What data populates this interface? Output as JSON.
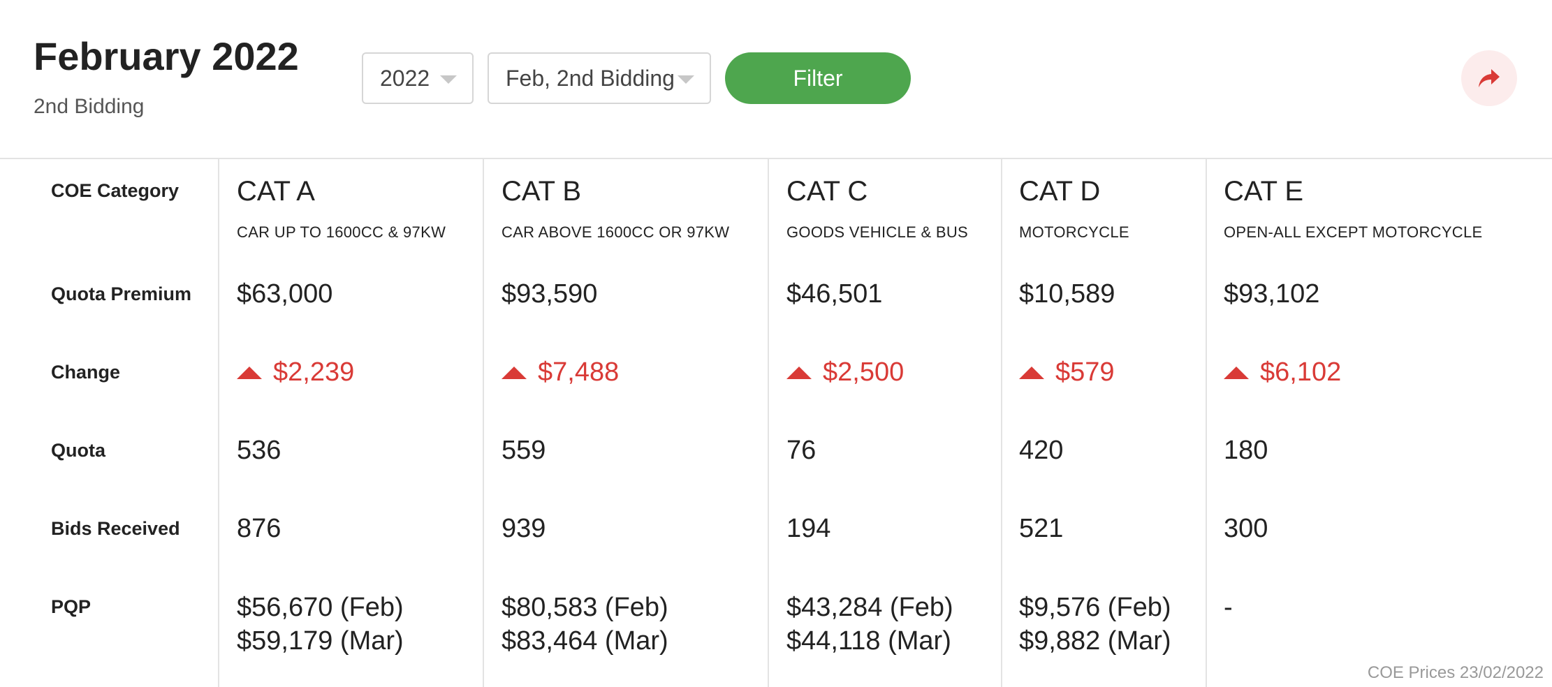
{
  "header": {
    "title": "February 2022",
    "subtitle": "2nd Bidding",
    "year_select": "2022",
    "bidding_select": "Feb, 2nd Bidding",
    "filter_label": "Filter"
  },
  "row_labels": {
    "category": "COE Category",
    "quota_premium": "Quota Premium",
    "change": "Change",
    "quota": "Quota",
    "bids": "Bids Received",
    "pqp": "PQP"
  },
  "categories": [
    {
      "name": "CAT A",
      "desc": "CAR UP TO 1600CC & 97KW",
      "premium": "$63,000",
      "change": "$2,239",
      "quota": "536",
      "bids": "876",
      "pqp1": "$56,670 (Feb)",
      "pqp2": "$59,179 (Mar)"
    },
    {
      "name": "CAT B",
      "desc": "CAR ABOVE 1600CC OR 97KW",
      "premium": "$93,590",
      "change": "$7,488",
      "quota": "559",
      "bids": "939",
      "pqp1": "$80,583 (Feb)",
      "pqp2": "$83,464 (Mar)"
    },
    {
      "name": "CAT C",
      "desc": "GOODS VEHICLE & BUS",
      "premium": "$46,501",
      "change": "$2,500",
      "quota": "76",
      "bids": "194",
      "pqp1": "$43,284 (Feb)",
      "pqp2": "$44,118 (Mar)"
    },
    {
      "name": "CAT D",
      "desc": "MOTORCYCLE",
      "premium": "$10,589",
      "change": "$579",
      "quota": "420",
      "bids": "521",
      "pqp1": "$9,576 (Feb)",
      "pqp2": "$9,882 (Mar)"
    },
    {
      "name": "CAT E",
      "desc": "OPEN-ALL EXCEPT MOTORCYCLE",
      "premium": "$93,102",
      "change": "$6,102",
      "quota": "180",
      "bids": "300",
      "pqp1": "-",
      "pqp2": ""
    }
  ],
  "footer": "COE Prices 23/02/2022",
  "colors": {
    "accent_green": "#4ea64e",
    "up_red": "#d93a36"
  },
  "icons": {
    "share": "share-arrow-icon",
    "caret": "caret-down-icon",
    "change_up": "triangle-up-icon"
  }
}
